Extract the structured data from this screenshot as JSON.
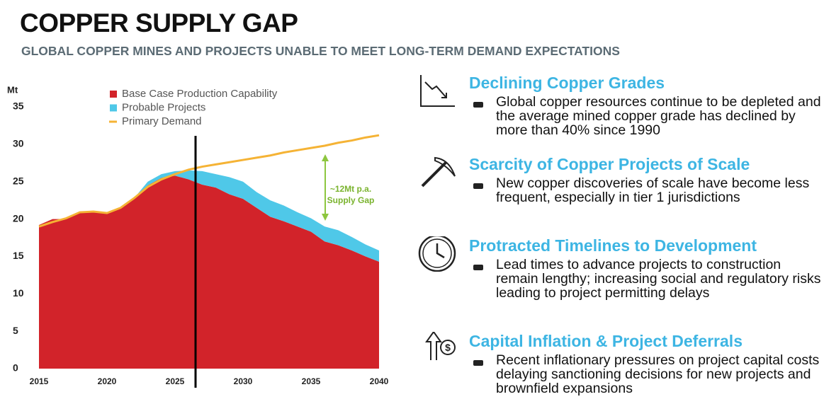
{
  "title": "COPPER SUPPLY GAP",
  "subtitle": "GLOBAL COPPER MINES AND PROJECTS UNABLE TO MEET LONG-TERM DEMAND EXPECTATIONS",
  "chart_data": {
    "type": "stacked_area",
    "y_axis_label": "Mt",
    "annotation": [
      "~12Mt p.a.",
      "Supply Gap"
    ],
    "x": [
      2015,
      2016,
      2017,
      2018,
      2019,
      2020,
      2021,
      2022,
      2023,
      2024,
      2025,
      2026,
      2027,
      2028,
      2029,
      2030,
      2031,
      2032,
      2033,
      2034,
      2035,
      2036,
      2037,
      2038,
      2039,
      2040
    ],
    "series": [
      {
        "name": "Base Case Production Capability",
        "color": "#d2232a",
        "kind": "area",
        "values": [
          19.2,
          20.0,
          20.0,
          20.8,
          21.0,
          20.8,
          21.5,
          22.8,
          24.5,
          25.5,
          25.8,
          25.3,
          24.6,
          24.2,
          23.3,
          22.7,
          21.5,
          20.3,
          19.7,
          19.0,
          18.3,
          17.0,
          16.5,
          15.8,
          15.0,
          14.3
        ]
      },
      {
        "name": "Probable Projects",
        "color": "#4fc8e8",
        "kind": "area",
        "values": [
          0,
          0,
          0,
          0,
          0,
          0,
          0,
          0,
          0.5,
          0.5,
          0.6,
          1.2,
          1.8,
          1.8,
          2.3,
          2.3,
          2.1,
          2.2,
          2.1,
          1.9,
          1.8,
          2.0,
          2.0,
          1.8,
          1.6,
          1.5
        ]
      },
      {
        "name": "Primary Demand",
        "color": "#f5b335",
        "kind": "line",
        "values": [
          19.0,
          19.6,
          20.1,
          20.9,
          21.0,
          20.8,
          21.5,
          22.8,
          24.3,
          25.3,
          26.0,
          26.6,
          27.0,
          27.3,
          27.6,
          27.9,
          28.2,
          28.5,
          28.9,
          29.2,
          29.5,
          29.8,
          30.2,
          30.5,
          30.9,
          31.2
        ]
      }
    ],
    "xlim": [
      2015,
      2040
    ],
    "xticks": [
      2015,
      2020,
      2025,
      2030,
      2035,
      2040
    ],
    "ylim": [
      0,
      35
    ],
    "yticks": [
      0,
      5,
      10,
      15,
      20,
      25,
      30,
      35
    ]
  },
  "panels": [
    {
      "heading": "Declining Copper Grades",
      "text": "Global copper resources continue to be depleted and the average mined copper grade has declined by more than 40% since 1990"
    },
    {
      "heading": "Scarcity of Copper Projects of Scale",
      "text": "New copper discoveries of scale have become less frequent, especially in tier 1 jurisdictions"
    },
    {
      "heading": "Protracted Timelines to Development",
      "text": "Lead times to advance projects to construction remain lengthy; increasing social and regulatory risks leading to project permitting delays"
    },
    {
      "heading": "Capital Inflation & Project Deferrals",
      "text": "Recent inflationary pressures on project capital costs delaying sanctioning decisions for new projects and brownfield expansions"
    }
  ]
}
